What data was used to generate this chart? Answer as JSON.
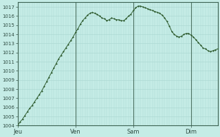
{
  "background_color": "#c5ece6",
  "plot_bg_color": "#c5ece6",
  "grid_color": "#a8d4ce",
  "line_color": "#2d5a2d",
  "marker_color": "#2d5a2d",
  "ylim": [
    1004,
    1017.5
  ],
  "yticks": [
    1004,
    1005,
    1006,
    1007,
    1008,
    1009,
    1010,
    1011,
    1012,
    1013,
    1014,
    1015,
    1016,
    1017
  ],
  "day_labels": [
    "Jeu",
    "Ven",
    "Sam",
    "Dim"
  ],
  "day_positions": [
    0,
    24,
    48,
    72
  ],
  "vline_positions": [
    24,
    48,
    72
  ],
  "total_hours": 84,
  "pressure_data": [
    1004.0,
    1004.4,
    1004.7,
    1005.1,
    1005.5,
    1005.9,
    1006.2,
    1006.6,
    1007.0,
    1007.4,
    1007.8,
    1008.3,
    1008.8,
    1009.3,
    1009.8,
    1010.3,
    1010.8,
    1011.3,
    1011.7,
    1012.1,
    1012.5,
    1012.9,
    1013.3,
    1013.7,
    1014.2,
    1014.6,
    1015.1,
    1015.5,
    1015.8,
    1016.1,
    1016.3,
    1016.4,
    1016.3,
    1016.2,
    1016.0,
    1015.8,
    1015.7,
    1015.5,
    1015.6,
    1015.8,
    1015.7,
    1015.6,
    1015.6,
    1015.5,
    1015.5,
    1015.7,
    1016.0,
    1016.2,
    1016.6,
    1016.9,
    1017.1,
    1017.1,
    1017.0,
    1016.9,
    1016.8,
    1016.7,
    1016.6,
    1016.5,
    1016.4,
    1016.3,
    1016.1,
    1015.8,
    1015.4,
    1014.9,
    1014.3,
    1014.0,
    1013.8,
    1013.7,
    1013.8,
    1014.0,
    1014.1,
    1014.1,
    1013.9,
    1013.7,
    1013.4,
    1013.1,
    1012.8,
    1012.5,
    1012.4,
    1012.2,
    1012.1,
    1012.2,
    1012.3,
    1012.4
  ]
}
